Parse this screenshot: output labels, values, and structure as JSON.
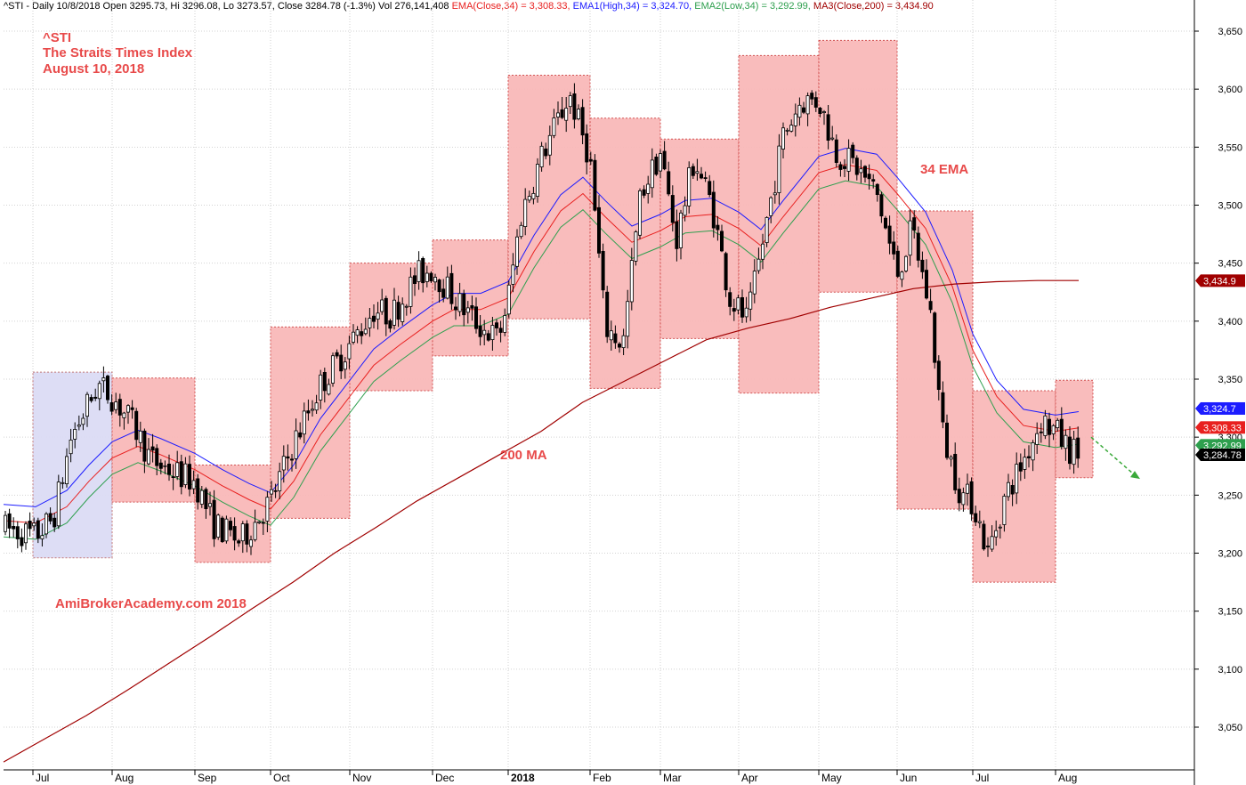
{
  "header": {
    "symbol_line": "^STI - Daily 10/8/2018 Open 3295.73, Hi 3296.08, Lo 3273.57, Close 3284.78 (-1.3%) Vol 276,141,408 ",
    "ema_close": "EMA(Close,34) = 3,308.33, ",
    "ema_high": "EMA1(High,34) = 3,324.70, ",
    "ema_low": "EMA2(Low,34) = 3,292.99, ",
    "ma200": "MA3(Close,200) = 3,434.90"
  },
  "annotations": {
    "symbol": "^STI",
    "index_name": "The Straits Times Index",
    "date": "August 10, 2018",
    "watermark": "AmiBrokerAcademy.com  2018",
    "ema_label": "34 EMA",
    "ma_label": "200 MA"
  },
  "colors": {
    "ema_close": "#e8201f",
    "ema_high": "#1c1cff",
    "ema_low": "#2e9f4e",
    "ma200": "#a00000",
    "box_fill": "#f9b9b9",
    "first_box_fill": "#dcdcf5",
    "annotation_text": "#e84a4a",
    "trend_arrow": "#3aa93a"
  },
  "chart_data": {
    "type": "candlestick",
    "title": "^STI The Straits Times Index",
    "ylim": [
      3000,
      3660
    ],
    "y_ticks": [
      3050,
      3100,
      3150,
      3200,
      3250,
      3300,
      3350,
      3400,
      3450,
      3500,
      3550,
      3600,
      3650
    ],
    "y_tick_labels": [
      "3,050",
      "3,100",
      "3,150",
      "3,200",
      "3,250",
      "3,300",
      "3,350",
      "3,400",
      "3,450",
      "3,500",
      "3,550",
      "3,600",
      "3,650"
    ],
    "x_month_labels": [
      "Jul",
      "Aug",
      "Sep",
      "Oct",
      "Nov",
      "Dec",
      "2018",
      "Feb",
      "Mar",
      "Apr",
      "May",
      "Jun",
      "Jul",
      "Aug"
    ],
    "grid": true,
    "last_values": {
      "ma200": {
        "label": "3,434.9",
        "value": 3434.9
      },
      "ema_high": {
        "label": "3,324.7",
        "value": 3324.7
      },
      "ema_close": {
        "label": "3,308.33",
        "value": 3308.33
      },
      "ema_low": {
        "label": "3,292.99",
        "value": 3292.99
      },
      "close": {
        "label": "3,284.78",
        "value": 3284.78
      }
    },
    "range_boxes": [
      {
        "from_month": "Jul",
        "low": 3196,
        "high": 3356
      },
      {
        "from_month": "Aug",
        "low": 3244,
        "high": 3351
      },
      {
        "from_month": "Sep",
        "low": 3192,
        "high": 3276
      },
      {
        "from_month": "Oct",
        "low": 3230,
        "high": 3395
      },
      {
        "from_month": "Nov",
        "low": 3340,
        "high": 3450
      },
      {
        "from_month": "Dec",
        "low": 3370,
        "high": 3470
      },
      {
        "from_month": "2018",
        "low": 3402,
        "high": 3612
      },
      {
        "from_month": "Feb",
        "low": 3342,
        "high": 3575
      },
      {
        "from_month": "Mar",
        "low": 3385,
        "high": 3557
      },
      {
        "from_month": "Apr",
        "low": 3338,
        "high": 3629
      },
      {
        "from_month": "May",
        "low": 3425,
        "high": 3642
      },
      {
        "from_month": "Jun",
        "low": 3238,
        "high": 3495
      },
      {
        "from_month": "Jul",
        "low": 3175,
        "high": 3340
      },
      {
        "from_month": "Aug",
        "low": 3265,
        "high": 3349
      }
    ],
    "ma200_series": [
      3020,
      3040,
      3060,
      3082,
      3105,
      3128,
      3152,
      3175,
      3200,
      3222,
      3245,
      3265,
      3285,
      3305,
      3330,
      3348,
      3366,
      3384,
      3394,
      3402,
      3412,
      3420,
      3428,
      3432,
      3434,
      3435,
      3435
    ]
  }
}
